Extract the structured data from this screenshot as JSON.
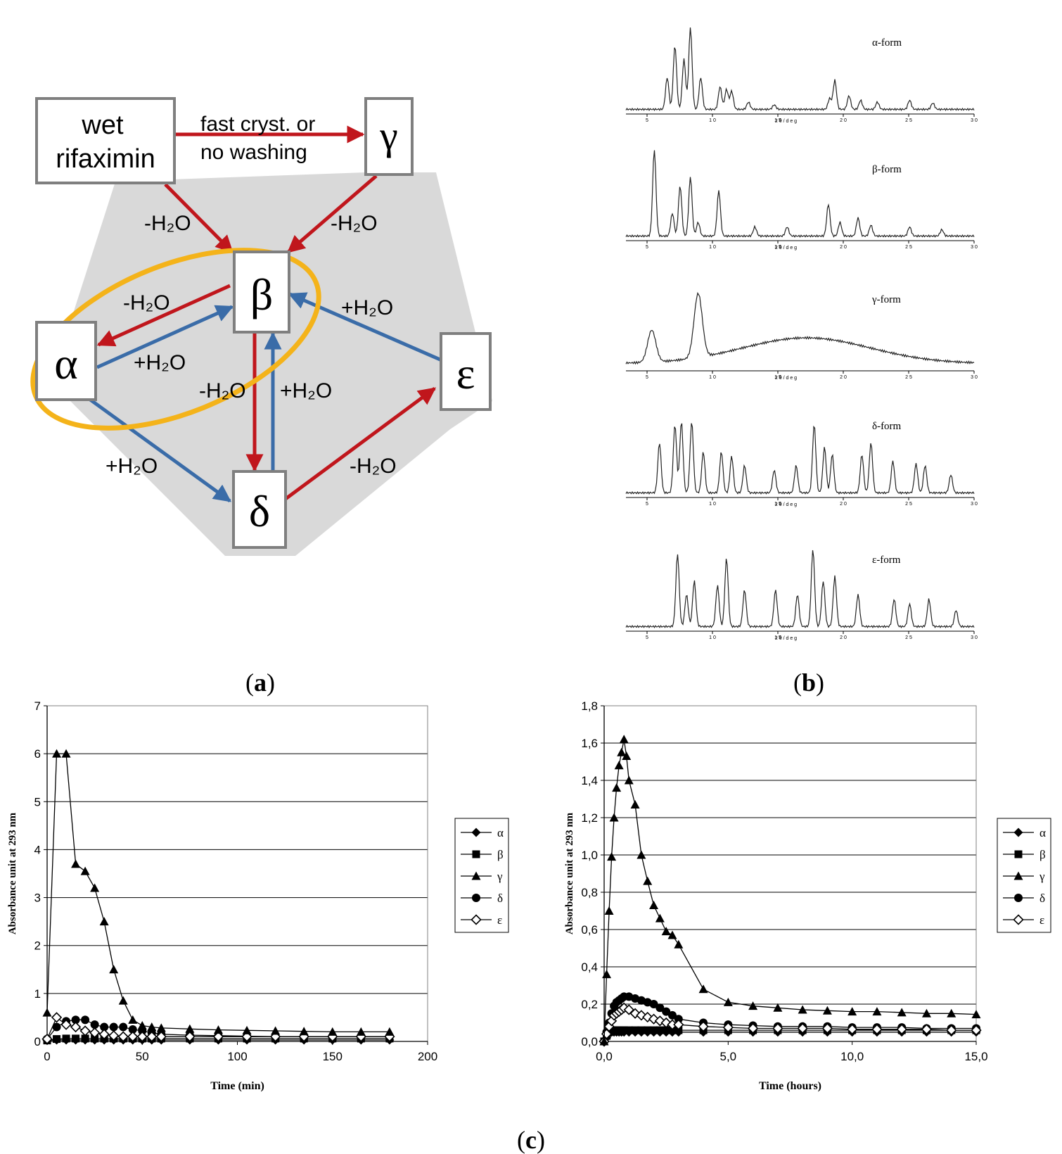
{
  "panel_a": {
    "caption": "a",
    "nodes": {
      "wet": [
        "wet",
        "rifaximin"
      ],
      "gamma": "γ",
      "beta": "β",
      "alpha": "α",
      "epsilon": "ε",
      "delta": "δ"
    },
    "edge_labels": {
      "wet_to_gamma": [
        "fast cryst. or",
        "no washing"
      ],
      "wet_to_beta": "-H₂O",
      "gamma_to_beta": "-H₂O",
      "beta_to_alpha": "-H₂O",
      "alpha_to_beta": "+H₂O",
      "epsilon_to_beta": "+H₂O",
      "beta_to_delta": "-H₂O",
      "delta_to_beta": "+H₂O",
      "alpha_to_delta": "+H₂O",
      "delta_to_epsilon": "-H₂O"
    },
    "colors": {
      "dehydration": "#c0161c",
      "hydration": "#3a6ca8",
      "highlight": "#f4b31a",
      "shade": "#d9d9d9"
    }
  },
  "panel_b": {
    "caption": "b",
    "xrd": [
      {
        "label": "α-form",
        "axis_label": "2 θ / d e g",
        "ticks": [
          "5",
          "1 0",
          "1 5",
          "2 0",
          "2 5",
          "3 0"
        ]
      },
      {
        "label": "β-form",
        "axis_label": "2 θ / d e g",
        "ticks": [
          "5",
          "1 0",
          "1 5",
          "2 0",
          "2 5",
          "3 0"
        ]
      },
      {
        "label": "γ-form",
        "axis_label": "2 θ / d e g",
        "ticks": [
          "5",
          "1 0",
          "1 5",
          "2 0",
          "2 5",
          "3 0"
        ]
      },
      {
        "label": "δ-form",
        "axis_label": "2 θ / d e g",
        "ticks": [
          "5",
          "1 0",
          "1 5",
          "2 0",
          "2 5",
          "3 0"
        ]
      },
      {
        "label": "ε-form",
        "axis_label": "2 θ / d e g",
        "ticks": [
          "5",
          "1 0",
          "1 5",
          "2 0",
          "2 5",
          "3 0"
        ]
      }
    ]
  },
  "panel_c": {
    "caption": "c"
  },
  "chart_data": [
    {
      "type": "line",
      "title": "",
      "xlabel": "Time (min)",
      "ylabel": "Absorbance unit at 293 nm",
      "xlim": [
        0,
        200
      ],
      "ylim": [
        0,
        7
      ],
      "xticks": [
        "0",
        "50",
        "100",
        "150",
        "200"
      ],
      "yticks": [
        "0",
        "1",
        "2",
        "3",
        "4",
        "5",
        "6",
        "7"
      ],
      "grid": true,
      "legend": "right",
      "series": [
        {
          "name": "α",
          "marker": "diamond",
          "x": [
            0,
            5,
            10,
            15,
            20,
            25,
            30,
            35,
            40,
            45,
            50,
            55,
            60,
            75,
            90,
            105,
            120,
            135,
            150,
            165,
            180
          ],
          "y": [
            0.02,
            0.03,
            0.03,
            0.03,
            0.03,
            0.03,
            0.03,
            0.03,
            0.03,
            0.03,
            0.03,
            0.03,
            0.03,
            0.03,
            0.03,
            0.03,
            0.03,
            0.03,
            0.03,
            0.03,
            0.03
          ]
        },
        {
          "name": "β",
          "marker": "square",
          "x": [
            0,
            5,
            10,
            15,
            20,
            25,
            30,
            35,
            40,
            45,
            50,
            55,
            60,
            75,
            90,
            105,
            120,
            135,
            150,
            165,
            180
          ],
          "y": [
            0.02,
            0.05,
            0.06,
            0.06,
            0.06,
            0.06,
            0.06,
            0.06,
            0.06,
            0.06,
            0.06,
            0.06,
            0.06,
            0.06,
            0.06,
            0.06,
            0.06,
            0.06,
            0.06,
            0.06,
            0.06
          ]
        },
        {
          "name": "γ",
          "marker": "triangle",
          "x": [
            0,
            5,
            10,
            15,
            20,
            25,
            30,
            35,
            40,
            45,
            50,
            55,
            60,
            75,
            90,
            105,
            120,
            135,
            150,
            165,
            180
          ],
          "y": [
            0.6,
            6.0,
            6.0,
            3.7,
            3.55,
            3.2,
            2.5,
            1.5,
            0.85,
            0.45,
            0.33,
            0.3,
            0.28,
            0.26,
            0.24,
            0.23,
            0.22,
            0.21,
            0.2,
            0.2,
            0.2
          ]
        },
        {
          "name": "δ",
          "marker": "circle",
          "x": [
            0,
            5,
            10,
            15,
            20,
            25,
            30,
            35,
            40,
            45,
            50,
            55,
            60,
            75,
            90,
            105,
            120,
            135,
            150,
            165,
            180
          ],
          "y": [
            0.05,
            0.3,
            0.42,
            0.45,
            0.45,
            0.35,
            0.3,
            0.3,
            0.3,
            0.25,
            0.22,
            0.18,
            0.15,
            0.13,
            0.12,
            0.11,
            0.1,
            0.1,
            0.1,
            0.1,
            0.1
          ]
        },
        {
          "name": "ε",
          "marker": "open-diamond",
          "x": [
            0,
            5,
            10,
            15,
            20,
            25,
            30,
            35,
            40,
            45,
            50,
            55,
            60,
            75,
            90,
            105,
            120,
            135,
            150,
            165,
            180
          ],
          "y": [
            0.05,
            0.5,
            0.35,
            0.3,
            0.22,
            0.18,
            0.15,
            0.12,
            0.1,
            0.1,
            0.1,
            0.1,
            0.1,
            0.1,
            0.1,
            0.1,
            0.1,
            0.1,
            0.1,
            0.1,
            0.1
          ]
        }
      ]
    },
    {
      "type": "line",
      "title": "",
      "xlabel": "Time (hours)",
      "ylabel": "Absorbance unit at 293 nm",
      "xlim": [
        0,
        15
      ],
      "ylim": [
        0,
        1.8
      ],
      "xticks": [
        "0,0",
        "5,0",
        "10,0",
        "15,0"
      ],
      "yticks": [
        "0,0",
        "0,2",
        "0,4",
        "0,6",
        "0,8",
        "1,0",
        "1,2",
        "1,4",
        "1,6",
        "1,8"
      ],
      "grid": true,
      "legend": "right",
      "series": [
        {
          "name": "α",
          "marker": "diamond",
          "x": [
            0,
            0.1,
            0.2,
            0.3,
            0.4,
            0.5,
            0.6,
            0.7,
            0.8,
            1.0,
            1.25,
            1.5,
            1.75,
            2.0,
            2.25,
            2.5,
            2.75,
            3.0,
            4,
            5,
            6,
            7,
            8,
            9,
            10,
            11,
            12,
            13,
            14,
            15
          ],
          "y": [
            0.0,
            0.02,
            0.04,
            0.05,
            0.05,
            0.05,
            0.05,
            0.05,
            0.05,
            0.05,
            0.05,
            0.05,
            0.05,
            0.05,
            0.05,
            0.05,
            0.05,
            0.05,
            0.05,
            0.05,
            0.05,
            0.05,
            0.05,
            0.05,
            0.05,
            0.05,
            0.05,
            0.05,
            0.05,
            0.05
          ]
        },
        {
          "name": "β",
          "marker": "square",
          "x": [
            0,
            0.1,
            0.2,
            0.3,
            0.4,
            0.5,
            0.6,
            0.7,
            0.8,
            1.0,
            1.25,
            1.5,
            1.75,
            2.0,
            2.25,
            2.5,
            2.75,
            3.0,
            4,
            5,
            6,
            7,
            8,
            9,
            10,
            11,
            12,
            13,
            14,
            15
          ],
          "y": [
            0.0,
            0.03,
            0.05,
            0.06,
            0.06,
            0.06,
            0.06,
            0.06,
            0.06,
            0.06,
            0.06,
            0.06,
            0.06,
            0.06,
            0.06,
            0.06,
            0.06,
            0.06,
            0.06,
            0.06,
            0.06,
            0.06,
            0.06,
            0.06,
            0.06,
            0.06,
            0.06,
            0.06,
            0.06,
            0.06
          ]
        },
        {
          "name": "γ",
          "marker": "triangle",
          "x": [
            0,
            0.1,
            0.2,
            0.3,
            0.4,
            0.5,
            0.6,
            0.7,
            0.8,
            0.9,
            1.0,
            1.25,
            1.5,
            1.75,
            2.0,
            2.25,
            2.5,
            2.75,
            3.0,
            4,
            5,
            6,
            7,
            8,
            9,
            10,
            11,
            12,
            13,
            14,
            15
          ],
          "y": [
            0.0,
            0.36,
            0.7,
            0.99,
            1.2,
            1.36,
            1.48,
            1.55,
            1.62,
            1.53,
            1.4,
            1.27,
            1.0,
            0.86,
            0.73,
            0.66,
            0.59,
            0.57,
            0.52,
            0.28,
            0.21,
            0.19,
            0.18,
            0.17,
            0.165,
            0.16,
            0.16,
            0.155,
            0.15,
            0.15,
            0.145
          ]
        },
        {
          "name": "δ",
          "marker": "circle",
          "x": [
            0,
            0.1,
            0.2,
            0.3,
            0.4,
            0.5,
            0.6,
            0.7,
            0.8,
            1.0,
            1.25,
            1.5,
            1.75,
            2.0,
            2.25,
            2.5,
            2.75,
            3.0,
            4,
            5,
            6,
            7,
            8,
            9,
            10,
            11,
            12,
            13,
            14,
            15
          ],
          "y": [
            0.0,
            0.05,
            0.1,
            0.15,
            0.19,
            0.21,
            0.22,
            0.23,
            0.24,
            0.24,
            0.23,
            0.22,
            0.21,
            0.2,
            0.18,
            0.16,
            0.14,
            0.12,
            0.1,
            0.09,
            0.085,
            0.08,
            0.08,
            0.08,
            0.075,
            0.075,
            0.075,
            0.07,
            0.07,
            0.07
          ]
        },
        {
          "name": "ε",
          "marker": "open-diamond",
          "x": [
            0,
            0.1,
            0.2,
            0.3,
            0.4,
            0.5,
            0.6,
            0.7,
            0.8,
            1.0,
            1.25,
            1.5,
            1.75,
            2.0,
            2.25,
            2.5,
            2.75,
            3.0,
            4,
            5,
            6,
            7,
            8,
            9,
            10,
            11,
            12,
            13,
            14,
            15
          ],
          "y": [
            0.0,
            0.04,
            0.08,
            0.11,
            0.14,
            0.15,
            0.16,
            0.17,
            0.18,
            0.17,
            0.15,
            0.14,
            0.13,
            0.12,
            0.11,
            0.1,
            0.09,
            0.09,
            0.08,
            0.075,
            0.07,
            0.07,
            0.07,
            0.07,
            0.065,
            0.065,
            0.065,
            0.065,
            0.06,
            0.06
          ]
        }
      ]
    }
  ]
}
